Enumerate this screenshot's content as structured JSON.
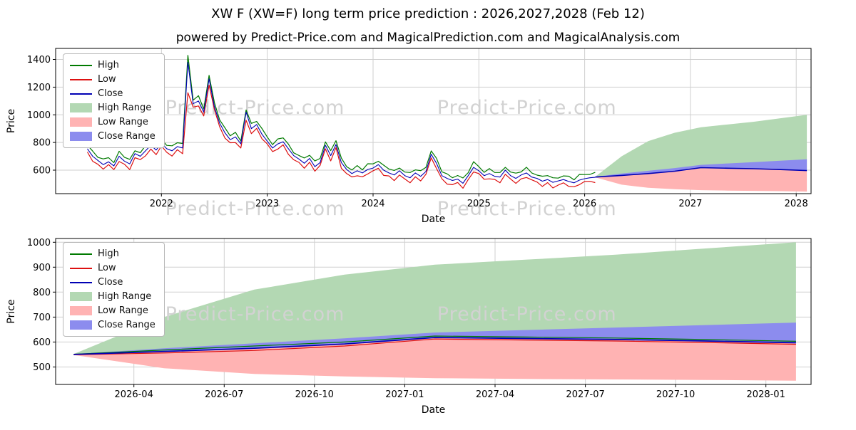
{
  "page": {
    "title": "XW F (XW=F) long term price prediction : 2026,2027,2028 (Feb 12)",
    "subtitle": "powered by Predict-Price.com and MagicalPrediction.com and MagicalAnalysis.com",
    "watermark": "Predict-Price.com"
  },
  "colors": {
    "high": "#007a00",
    "low": "#dd1111",
    "close": "#0000b4",
    "high_range": "#b3d8b3",
    "low_range": "#ffb3b3",
    "close_range": "#8c8cee",
    "grid": "#cfcfcf",
    "watermark": "#d2d2d2",
    "spine": "#000000"
  },
  "legend": [
    {
      "label": "High",
      "kind": "line",
      "color": "high"
    },
    {
      "label": "Low",
      "kind": "line",
      "color": "low"
    },
    {
      "label": "Close",
      "kind": "line",
      "color": "close"
    },
    {
      "label": "High Range",
      "kind": "patch",
      "color": "high_range"
    },
    {
      "label": "Low Range",
      "kind": "patch",
      "color": "low_range"
    },
    {
      "label": "Close Range",
      "kind": "patch",
      "color": "close_range"
    }
  ],
  "chart_data": [
    {
      "type": "line",
      "title": "",
      "xlabel": "Date",
      "ylabel": "Price",
      "xlim": [
        2021.0,
        2028.14
      ],
      "ylim": [
        430,
        1480
      ],
      "grid": true,
      "legend_position": "upper left",
      "xticks": {
        "values": [
          2022,
          2023,
          2024,
          2025,
          2026,
          2027,
          2028
        ],
        "labels": [
          "2022",
          "2023",
          "2024",
          "2025",
          "2026",
          "2027",
          "2028"
        ]
      },
      "yticks": {
        "values": [
          600,
          800,
          1000,
          1200,
          1400
        ],
        "labels": [
          "600",
          "800",
          "1000",
          "1200",
          "1400"
        ]
      },
      "bands": [
        {
          "name": "High Range",
          "color": "high_range",
          "x": [
            2026.1,
            2026.35,
            2026.6,
            2026.85,
            2027.1,
            2027.35,
            2027.6,
            2027.85,
            2028.1
          ],
          "upper": [
            552,
            700,
            810,
            870,
            910,
            930,
            950,
            975,
            1000
          ],
          "lower": [
            550,
            562,
            575,
            592,
            618,
            614,
            610,
            604,
            597
          ]
        },
        {
          "name": "Low Range",
          "color": "low_range",
          "x": [
            2026.1,
            2026.35,
            2026.6,
            2026.85,
            2027.1,
            2027.35,
            2027.6,
            2027.85,
            2028.1
          ],
          "upper": [
            550,
            562,
            575,
            592,
            618,
            614,
            610,
            604,
            597
          ],
          "lower": [
            548,
            495,
            472,
            462,
            455,
            452,
            450,
            448,
            445
          ]
        },
        {
          "name": "Close Range",
          "color": "close_range",
          "x": [
            2026.1,
            2026.35,
            2026.6,
            2026.85,
            2027.1,
            2027.35,
            2027.6,
            2027.85,
            2028.1
          ],
          "upper": [
            552,
            575,
            595,
            615,
            638,
            648,
            658,
            668,
            678
          ],
          "lower": [
            550,
            562,
            575,
            592,
            618,
            614,
            610,
            604,
            597
          ]
        }
      ],
      "lines": [
        {
          "name": "High",
          "color": "high",
          "x_start": 2021.3,
          "x_step": 0.05,
          "width": 1.2,
          "y": [
            781,
            738,
            692,
            681,
            690,
            654,
            736,
            693,
            678,
            740,
            726,
            778,
            802,
            786,
            825,
            779,
            776,
            798,
            793,
            1430,
            1106,
            1138,
            1042,
            1285,
            1090,
            964,
            906,
            848,
            873,
            810,
            1035,
            938,
            952,
            901,
            840,
            784,
            826,
            833,
            788,
            725,
            706,
            688,
            707,
            666,
            685,
            804,
            741,
            813,
            688,
            625,
            601,
            633,
            602,
            646,
            645,
            664,
            636,
            608,
            598,
            615,
            586,
            583,
            602,
            596,
            620,
            739,
            686,
            588,
            573,
            545,
            561,
            543,
            582,
            661,
            625,
            584,
            611,
            583,
            583,
            620,
            586,
            578,
            587,
            621,
            580,
            564,
            556,
            560,
            545,
            542,
            558,
            556,
            530,
            569,
            568,
            569,
            584
          ]
        },
        {
          "name": "Low",
          "color": "low",
          "x_start": 2021.3,
          "x_step": 0.05,
          "width": 1.2,
          "y": [
            731,
            664,
            642,
            607,
            640,
            604,
            662,
            643,
            604,
            690,
            676,
            704,
            752,
            712,
            775,
            729,
            702,
            748,
            719,
            1160,
            1056,
            1064,
            992,
            1215,
            1040,
            914,
            832,
            798,
            799,
            760,
            960,
            864,
            902,
            827,
            790,
            734,
            752,
            783,
            714,
            675,
            656,
            614,
            657,
            592,
            635,
            754,
            667,
            763,
            614,
            575,
            551,
            559,
            552,
            572,
            595,
            614,
            562,
            558,
            524,
            565,
            536,
            509,
            552,
            522,
            570,
            689,
            612,
            538,
            499,
            495,
            511,
            469,
            532,
            587,
            575,
            534,
            537,
            533,
            509,
            570,
            536,
            504,
            537,
            547,
            530,
            514,
            482,
            510,
            471,
            492,
            508,
            482,
            480,
            495,
            518,
            519,
            510
          ]
        },
        {
          "name": "Close",
          "color": "close",
          "x_start": 2021.3,
          "x_step": 0.05,
          "width": 1.1,
          "y": [
            755,
            700,
            670,
            640,
            660,
            630,
            700,
            665,
            645,
            720,
            700,
            740,
            780,
            745,
            795,
            755,
            740,
            770,
            760,
            1380,
            1080,
            1100,
            1020,
            1260,
            1060,
            940,
            870,
            820,
            840,
            790,
            1020,
            900,
            930,
            860,
            810,
            760,
            790,
            805,
            755,
            705,
            680,
            650,
            685,
            625,
            655,
            780,
            705,
            785,
            655,
            605,
            575,
            595,
            580,
            605,
            615,
            640,
            600,
            580,
            565,
            595,
            560,
            545,
            580,
            555,
            590,
            715,
            650,
            560,
            540,
            525,
            535,
            505,
            560,
            620,
            595,
            560,
            575,
            555,
            550,
            600,
            560,
            540,
            565,
            580,
            550,
            540,
            520,
            532,
            512,
            522,
            532,
            518,
            508,
            528,
            538,
            545,
            548
          ]
        },
        {
          "name": "Close forecast",
          "color": "close",
          "width": 1.6,
          "x": [
            2026.1,
            2026.35,
            2026.6,
            2026.85,
            2027.1,
            2027.35,
            2027.6,
            2027.85,
            2028.1
          ],
          "y": [
            550,
            562,
            575,
            592,
            618,
            614,
            610,
            604,
            597
          ]
        }
      ]
    },
    {
      "type": "line",
      "title": "",
      "xlabel": "Date",
      "ylabel": "Price",
      "xlim": [
        -0.6,
        24.5
      ],
      "ylim": [
        430,
        1015
      ],
      "grid": true,
      "legend_position": "upper left",
      "x_unit": "months since 2026-02",
      "xticks": {
        "values": [
          2,
          5,
          8,
          11,
          14,
          17,
          20,
          23
        ],
        "labels": [
          "2026-04",
          "2026-07",
          "2026-10",
          "2027-01",
          "2027-04",
          "2027-07",
          "2027-10",
          "2028-01"
        ]
      },
      "yticks": {
        "values": [
          500,
          600,
          700,
          800,
          900,
          1000
        ],
        "labels": [
          "500",
          "600",
          "700",
          "800",
          "900",
          "1000"
        ]
      },
      "bands": [
        {
          "name": "High Range",
          "color": "high_range",
          "x": [
            0,
            3,
            6,
            9,
            12,
            15,
            18,
            21,
            24
          ],
          "upper": [
            552,
            700,
            810,
            870,
            910,
            930,
            950,
            975,
            1000
          ],
          "lower": [
            550,
            562,
            575,
            592,
            618,
            614,
            610,
            604,
            597
          ]
        },
        {
          "name": "Low Range",
          "color": "low_range",
          "x": [
            0,
            3,
            6,
            9,
            12,
            15,
            18,
            21,
            24
          ],
          "upper": [
            550,
            562,
            575,
            592,
            618,
            614,
            610,
            604,
            597
          ],
          "lower": [
            548,
            495,
            472,
            462,
            455,
            452,
            450,
            448,
            445
          ]
        },
        {
          "name": "Close Range",
          "color": "close_range",
          "x": [
            0,
            3,
            6,
            9,
            12,
            15,
            18,
            21,
            24
          ],
          "upper": [
            552,
            575,
            595,
            615,
            638,
            648,
            658,
            668,
            678
          ],
          "lower": [
            550,
            562,
            575,
            592,
            618,
            614,
            610,
            604,
            597
          ]
        }
      ],
      "lines": [
        {
          "name": "High",
          "color": "high",
          "width": 1.2,
          "x": [
            0,
            3,
            6,
            9,
            12,
            15,
            18,
            21,
            24
          ],
          "y": [
            551,
            568,
            584,
            600,
            624,
            620,
            616,
            610,
            603
          ]
        },
        {
          "name": "Low",
          "color": "low",
          "width": 1.2,
          "x": [
            0,
            3,
            6,
            9,
            12,
            15,
            18,
            21,
            24
          ],
          "y": [
            549,
            556,
            566,
            584,
            612,
            608,
            604,
            598,
            591
          ]
        },
        {
          "name": "Close",
          "color": "close",
          "width": 1.7,
          "x": [
            0,
            3,
            6,
            9,
            12,
            15,
            18,
            21,
            24
          ],
          "y": [
            550,
            562,
            575,
            592,
            618,
            614,
            610,
            604,
            597
          ]
        }
      ]
    }
  ]
}
